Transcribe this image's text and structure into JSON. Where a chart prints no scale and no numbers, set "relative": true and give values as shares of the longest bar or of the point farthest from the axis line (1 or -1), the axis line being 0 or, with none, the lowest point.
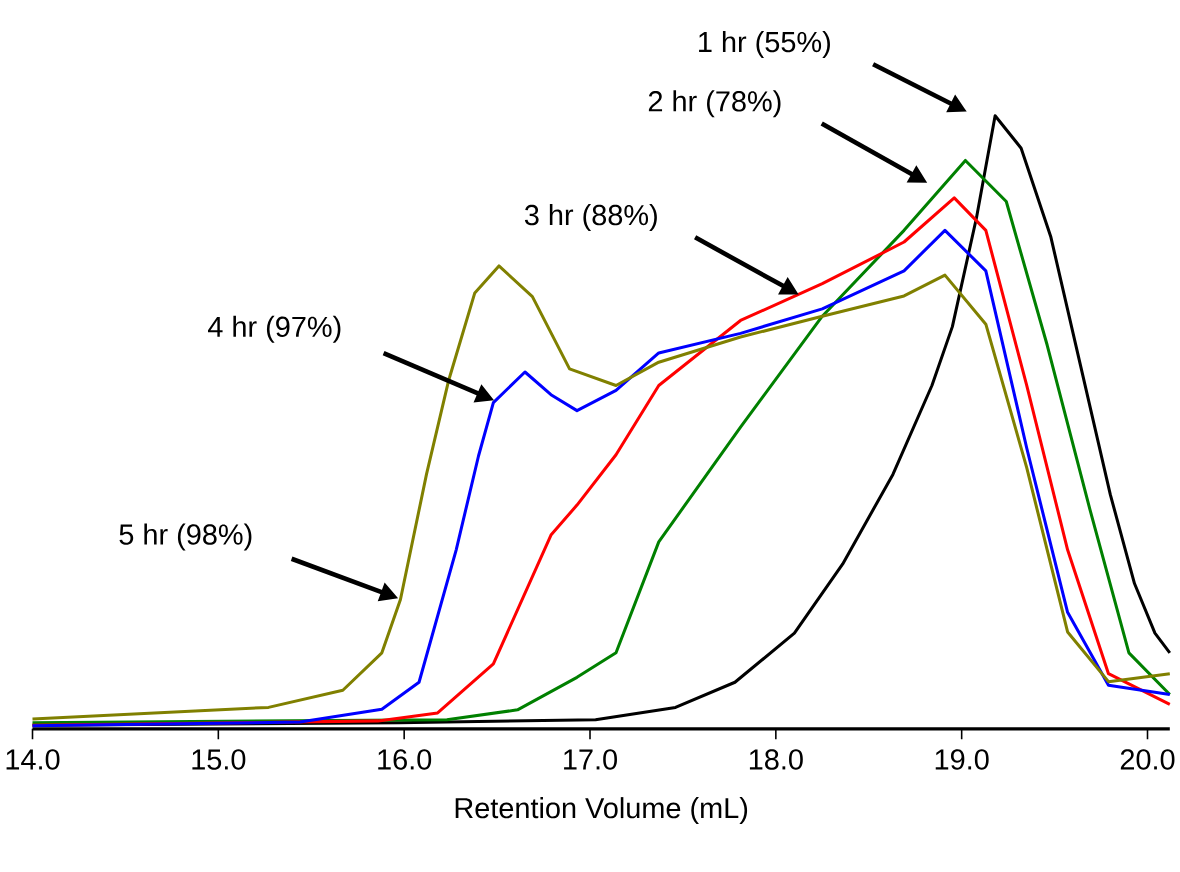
{
  "chart_data": {
    "type": "line",
    "relative": true,
    "xlabel": "Retention Volume (mL)",
    "xlim": [
      14.0,
      20.12
    ],
    "xticks": [
      {
        "value": 14,
        "label": "14.0"
      },
      {
        "value": 15,
        "label": "15.0"
      },
      {
        "value": 16,
        "label": "16.0"
      },
      {
        "value": 17,
        "label": "17.0"
      },
      {
        "value": 18,
        "label": "18.0"
      },
      {
        "value": 19,
        "label": "19.0"
      },
      {
        "value": 20,
        "label": "20.0"
      }
    ],
    "series": [
      {
        "color": "#000000",
        "x": [
          14.0,
          15.97,
          17.03,
          17.46,
          17.78,
          18.1,
          18.36,
          18.63,
          18.84,
          18.95,
          19.08,
          19.18,
          19.32,
          19.48,
          19.64,
          19.8,
          19.93,
          20.04,
          20.12
        ],
        "values": [
          0.006,
          0.01,
          0.015,
          0.035,
          0.076,
          0.156,
          0.269,
          0.415,
          0.56,
          0.656,
          0.834,
          1.0,
          0.947,
          0.802,
          0.592,
          0.382,
          0.237,
          0.156,
          0.124
        ]
      },
      {
        "color": "#008000",
        "x": [
          14.0,
          16.23,
          16.61,
          16.93,
          17.14,
          17.37,
          17.81,
          18.25,
          18.69,
          19.02,
          19.24,
          19.46,
          19.69,
          19.9,
          20.12
        ],
        "values": [
          0.01,
          0.015,
          0.031,
          0.084,
          0.124,
          0.305,
          0.492,
          0.673,
          0.813,
          0.927,
          0.86,
          0.626,
          0.358,
          0.124,
          0.056
        ]
      },
      {
        "color": "#ff0000",
        "x": [
          14.0,
          15.86,
          16.18,
          16.48,
          16.79,
          16.93,
          17.14,
          17.37,
          17.81,
          18.25,
          18.69,
          18.96,
          19.13,
          19.35,
          19.57,
          19.79,
          20.12
        ],
        "values": [
          0.006,
          0.013,
          0.026,
          0.106,
          0.316,
          0.365,
          0.447,
          0.56,
          0.666,
          0.726,
          0.794,
          0.866,
          0.813,
          0.56,
          0.292,
          0.09,
          0.04
        ]
      },
      {
        "color": "#0000ff",
        "x": [
          14.0,
          15.44,
          15.88,
          16.08,
          16.28,
          16.4,
          16.48,
          16.65,
          16.79,
          16.93,
          17.14,
          17.37,
          17.81,
          18.25,
          18.69,
          18.91,
          19.13,
          19.35,
          19.57,
          19.79,
          20.12
        ],
        "values": [
          0.005,
          0.011,
          0.032,
          0.076,
          0.292,
          0.445,
          0.532,
          0.582,
          0.545,
          0.519,
          0.552,
          0.613,
          0.645,
          0.685,
          0.747,
          0.813,
          0.747,
          0.458,
          0.19,
          0.071,
          0.056
        ]
      },
      {
        "color": "#808000",
        "x": [
          14.0,
          15.27,
          15.67,
          15.88,
          15.98,
          16.12,
          16.24,
          16.38,
          16.51,
          16.69,
          16.89,
          17.14,
          17.37,
          17.81,
          18.25,
          18.69,
          18.91,
          19.13,
          19.35,
          19.57,
          19.79,
          20.12
        ],
        "values": [
          0.016,
          0.035,
          0.063,
          0.124,
          0.211,
          0.415,
          0.569,
          0.711,
          0.755,
          0.705,
          0.587,
          0.56,
          0.598,
          0.639,
          0.673,
          0.706,
          0.74,
          0.66,
          0.426,
          0.158,
          0.077,
          0.09
        ]
      }
    ],
    "annotations": [
      "1 hr (55%)",
      "2 hr (78%)",
      "3 hr (88%)",
      "4 hr (97%)",
      "5 hr (98%)"
    ]
  }
}
